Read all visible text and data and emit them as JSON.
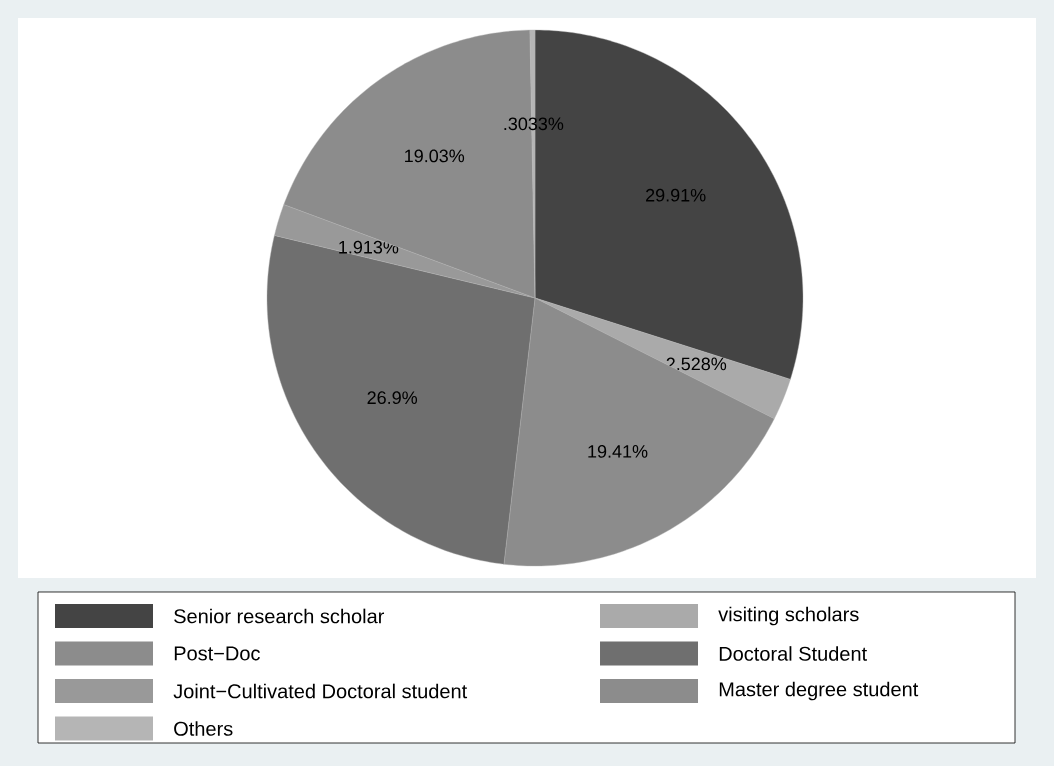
{
  "chart_data": {
    "type": "pie",
    "categories": [
      "Senior research scholar",
      "visiting scholars",
      "Post−Doc",
      "Doctoral Student",
      "Joint−Cultivated Doctoral student",
      "Master degree student",
      "Others"
    ],
    "values": [
      29.91,
      2.528,
      19.41,
      26.9,
      1.913,
      19.03,
      0.3033
    ],
    "value_labels": [
      "29.91%",
      "2.528%",
      "19.41%",
      "26.9%",
      "1.913%",
      "19.03%",
      ".3033%"
    ],
    "colors": [
      "#444444",
      "#aaaaaa",
      "#8c8c8c",
      "#6f6f6f",
      "#999999",
      "#8c8c8c",
      "#b5b5b5"
    ],
    "legend": "bottom"
  }
}
